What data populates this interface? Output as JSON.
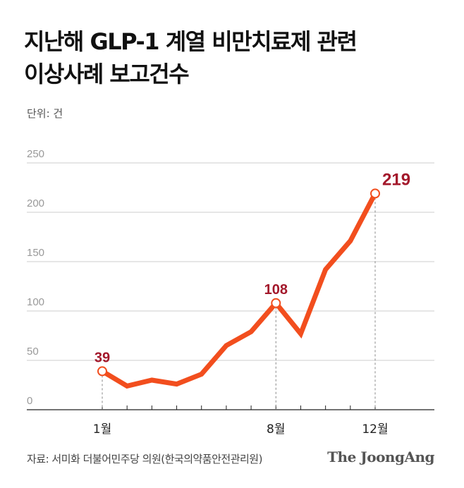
{
  "title_line1": "지난해 GLP-1 계열 비만치료제 관련",
  "title_line2": "이상사례 보고건수",
  "unit_label": "단위: 건",
  "source": "자료: 서미화 더불어민주당 의원(한국의약품안전관리원)",
  "logo": "The JoongAng",
  "colors": {
    "line": "#f24e1e",
    "label": "#a3182b",
    "grid": "#cccccc"
  },
  "chart_data": {
    "type": "line",
    "x": [
      1,
      2,
      3,
      4,
      5,
      6,
      7,
      8,
      9,
      10,
      11,
      12
    ],
    "values": [
      39,
      24,
      30,
      26,
      36,
      65,
      79,
      108,
      77,
      142,
      171,
      219
    ],
    "ylim": [
      0,
      250
    ],
    "yticks": [
      0,
      50,
      100,
      150,
      200,
      250
    ],
    "xtick_labels": [
      {
        "month": 1,
        "label": "1월"
      },
      {
        "month": 8,
        "label": "8월"
      },
      {
        "month": 12,
        "label": "12월"
      }
    ],
    "data_labels": [
      {
        "month": 1,
        "label": "39"
      },
      {
        "month": 8,
        "label": "108"
      },
      {
        "month": 12,
        "label": "219"
      }
    ],
    "grid": true
  }
}
